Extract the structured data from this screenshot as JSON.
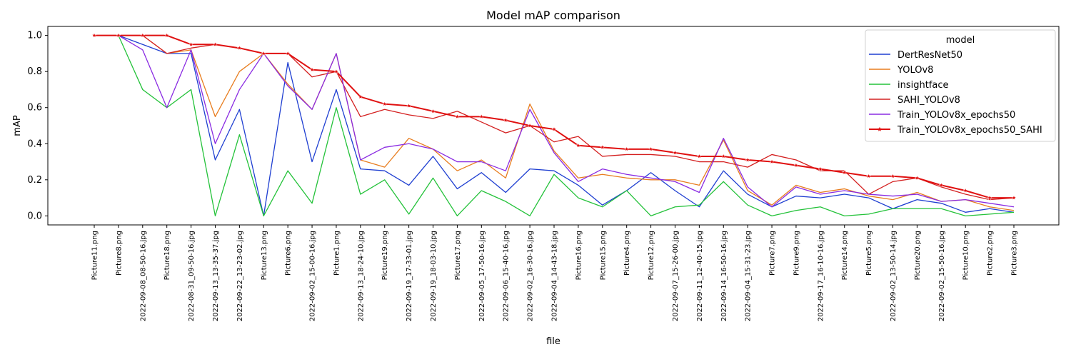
{
  "chart_data": {
    "type": "line",
    "title": "Model mAP comparison",
    "xlabel": "file",
    "ylabel": "mAP",
    "ylim": [
      -0.05,
      1.05
    ],
    "yticks": [
      "0.0",
      "0.2",
      "0.4",
      "0.6",
      "0.8",
      "1.0"
    ],
    "grid": false,
    "legend_title": "model",
    "legend_position": "top-right",
    "categories": [
      "Picture11.png",
      "Picture8.png",
      "2022-09-08_08-50-16.jpg",
      "Picture18.png",
      "2022-08-31_09-50-16.jpg",
      "2022-09-13_13-35-37.jpg",
      "2022-09-22_13-23-02.jpg",
      "Picture13.png",
      "Picture6.png",
      "2022-09-02_15-00-16.jpg",
      "Picture1.png",
      "2022-09-13_18-24-10.jpg",
      "Picture19.png",
      "2022-09-19_17-33-01.jpg",
      "2022-09-19_18-03-10.jpg",
      "Picture17.png",
      "2022-09-05_17-50-16.jpg",
      "2022-09-06_15-40-16.jpg",
      "2022-09-02_16-30-16.jpg",
      "2022-09-04_14-43-18.jpg",
      "Picture16.png",
      "Picture15.png",
      "Picture4.png",
      "Picture12.png",
      "2022-09-07_15-26-00.jpg",
      "2022-09-11_12-40-15.jpg",
      "2022-09-14_16-50-16.jpg",
      "2022-09-04_15-31-23.jpg",
      "Picture7.png",
      "Picture9.png",
      "2022-09-17_16-10-16.jpg",
      "Picture14.png",
      "Picture5.png",
      "2022-09-02_13-50-14.jpg",
      "Picture20.png",
      "2022-09-02_15-50-16.jpg",
      "Picture10.png",
      "Picture2.png",
      "Picture3.png"
    ],
    "series": [
      {
        "name": "DertResNet50",
        "color": "#1f3fd1",
        "marker": false,
        "values": [
          1.0,
          1.0,
          0.95,
          0.9,
          0.9,
          0.31,
          0.59,
          0.0,
          0.85,
          0.3,
          0.7,
          0.26,
          0.25,
          0.17,
          0.33,
          0.15,
          0.24,
          0.13,
          0.26,
          0.25,
          0.17,
          0.06,
          0.14,
          0.24,
          0.14,
          0.05,
          0.25,
          0.12,
          0.05,
          0.11,
          0.1,
          0.12,
          0.1,
          0.04,
          0.09,
          0.07,
          0.02,
          0.04,
          0.02
        ]
      },
      {
        "name": "YOLOv8",
        "color": "#e87d1f",
        "marker": false,
        "values": [
          1.0,
          1.0,
          1.0,
          0.9,
          0.92,
          0.55,
          0.8,
          0.9,
          0.73,
          0.59,
          0.9,
          0.31,
          0.27,
          0.43,
          0.37,
          0.25,
          0.31,
          0.21,
          0.62,
          0.36,
          0.21,
          0.23,
          0.21,
          0.2,
          0.2,
          0.17,
          0.42,
          0.14,
          0.06,
          0.17,
          0.13,
          0.15,
          0.11,
          0.09,
          0.13,
          0.08,
          0.09,
          0.05,
          0.03
        ]
      },
      {
        "name": "insightface",
        "color": "#24c23a",
        "marker": false,
        "values": [
          1.0,
          1.0,
          0.7,
          0.6,
          0.7,
          0.0,
          0.45,
          0.0,
          0.25,
          0.07,
          0.6,
          0.12,
          0.2,
          0.01,
          0.21,
          0.0,
          0.14,
          0.08,
          0.0,
          0.23,
          0.1,
          0.05,
          0.14,
          0.0,
          0.05,
          0.06,
          0.19,
          0.06,
          0.0,
          0.03,
          0.05,
          0.0,
          0.01,
          0.04,
          0.04,
          0.04,
          0.0,
          0.01,
          0.02
        ]
      },
      {
        "name": "SAHI_YOLOv8",
        "color": "#d42020",
        "marker": false,
        "values": [
          1.0,
          1.0,
          1.0,
          0.9,
          0.93,
          0.95,
          0.93,
          0.9,
          0.9,
          0.77,
          0.8,
          0.55,
          0.59,
          0.56,
          0.54,
          0.58,
          0.52,
          0.46,
          0.5,
          0.41,
          0.44,
          0.33,
          0.34,
          0.34,
          0.33,
          0.3,
          0.3,
          0.27,
          0.34,
          0.31,
          0.25,
          0.25,
          0.12,
          0.19,
          0.21,
          0.16,
          0.12,
          0.09,
          0.1
        ]
      },
      {
        "name": "Train_YOLOv8x_epochs50",
        "color": "#8a2be2",
        "marker": false,
        "values": [
          1.0,
          1.0,
          0.92,
          0.6,
          0.92,
          0.4,
          0.7,
          0.9,
          0.72,
          0.59,
          0.9,
          0.31,
          0.38,
          0.4,
          0.37,
          0.3,
          0.3,
          0.25,
          0.59,
          0.35,
          0.19,
          0.26,
          0.23,
          0.21,
          0.19,
          0.13,
          0.43,
          0.16,
          0.05,
          0.16,
          0.12,
          0.14,
          0.12,
          0.11,
          0.12,
          0.08,
          0.09,
          0.07,
          0.05
        ]
      },
      {
        "name": "Train_YOLOv8x_epochs50_SAHI",
        "color": "#e01010",
        "marker": true,
        "values": [
          1.0,
          1.0,
          1.0,
          1.0,
          0.95,
          0.95,
          0.93,
          0.9,
          0.9,
          0.81,
          0.8,
          0.66,
          0.62,
          0.61,
          0.58,
          0.55,
          0.55,
          0.53,
          0.5,
          0.48,
          0.39,
          0.38,
          0.37,
          0.37,
          0.35,
          0.33,
          0.33,
          0.31,
          0.3,
          0.28,
          0.26,
          0.24,
          0.22,
          0.22,
          0.21,
          0.17,
          0.14,
          0.1,
          0.1
        ]
      }
    ]
  }
}
